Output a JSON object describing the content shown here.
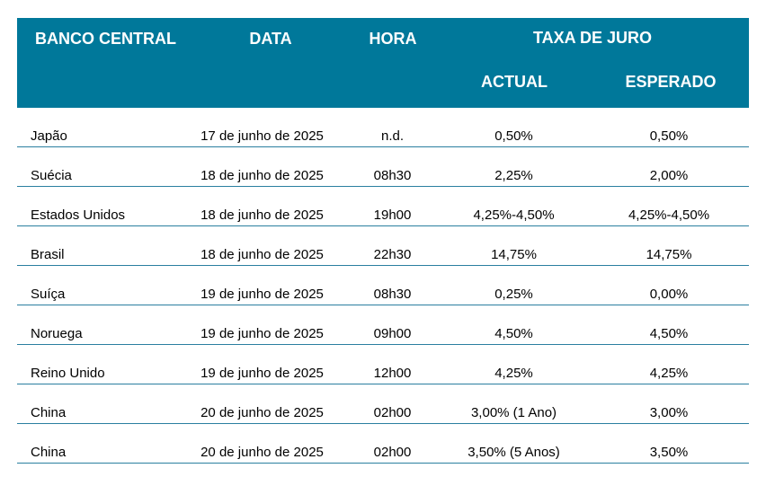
{
  "header": {
    "banco": "BANCO CENTRAL",
    "data": "DATA",
    "hora": "HORA",
    "taxa": "TAXA DE JURO",
    "actual": "ACTUAL",
    "esperado": "ESPERADO"
  },
  "rows": [
    {
      "pais": "Japão",
      "data": "17 de junho de 2025",
      "hora": "n.d.",
      "actual": "0,50%",
      "esperado": "0,50%"
    },
    {
      "pais": "Suécia",
      "data": "18 de junho de 2025",
      "hora": "08h30",
      "actual": "2,25%",
      "esperado": "2,00%"
    },
    {
      "pais": "Estados Unidos",
      "data": "18 de junho de 2025",
      "hora": "19h00",
      "actual": "4,25%-4,50%",
      "esperado": "4,25%-4,50%"
    },
    {
      "pais": "Brasil",
      "data": "18 de junho de 2025",
      "hora": "22h30",
      "actual": "14,75%",
      "esperado": "14,75%"
    },
    {
      "pais": "Suíça",
      "data": "19 de junho de 2025",
      "hora": "08h30",
      "actual": "0,25%",
      "esperado": "0,00%"
    },
    {
      "pais": "Noruega",
      "data": "19 de junho de 2025",
      "hora": "09h00",
      "actual": "4,50%",
      "esperado": "4,50%"
    },
    {
      "pais": "Reino Unido",
      "data": "19 de junho de 2025",
      "hora": "12h00",
      "actual": "4,25%",
      "esperado": "4,25%"
    },
    {
      "pais": "China",
      "data": "20 de junho de 2025",
      "hora": "02h00",
      "actual": "3,00% (1 Ano)",
      "esperado": "3,00%"
    },
    {
      "pais": "China",
      "data": "20 de junho de 2025",
      "hora": "02h00",
      "actual": "3,50% (5 Anos)",
      "esperado": "3,50%"
    }
  ]
}
